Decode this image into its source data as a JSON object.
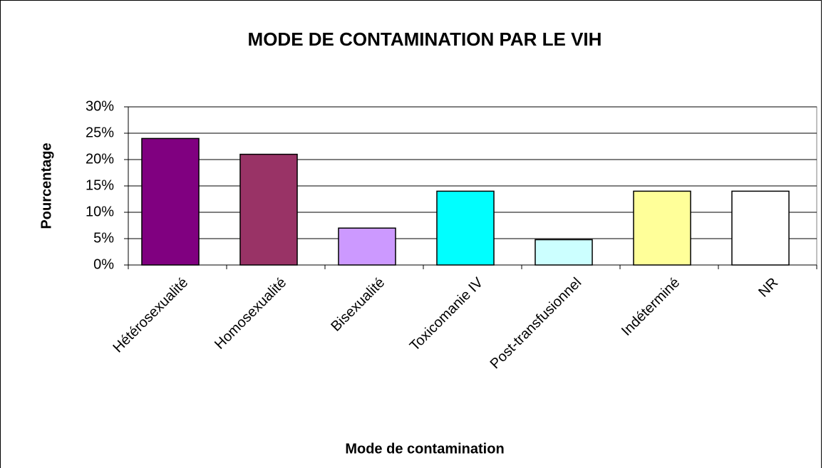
{
  "chart_data": {
    "type": "bar",
    "title": "MODE DE CONTAMINATION PAR LE VIH",
    "x_label": "Mode de contamination",
    "y_label": "Pourcentage",
    "categories": [
      "Hétérosexualité",
      "Homosexualité",
      "Bisexualité",
      "Toxicomanie IV",
      "Post-transfusionnel",
      "Indéterminé",
      "NR"
    ],
    "values": [
      24,
      21,
      7,
      14,
      4.8,
      14,
      14
    ],
    "colors": [
      "#800080",
      "#993366",
      "#cc99ff",
      "#00ffff",
      "#ccffff",
      "#ffff99",
      "#ffffff"
    ],
    "ylim": [
      0,
      30
    ],
    "yticks": [
      {
        "value": 0,
        "label": "0%"
      },
      {
        "value": 5,
        "label": "5%"
      },
      {
        "value": 10,
        "label": "10%"
      },
      {
        "value": 15,
        "label": "15%"
      },
      {
        "value": 20,
        "label": "20%"
      },
      {
        "value": 25,
        "label": "25%"
      },
      {
        "value": 30,
        "label": "30%"
      }
    ],
    "grid": true
  }
}
